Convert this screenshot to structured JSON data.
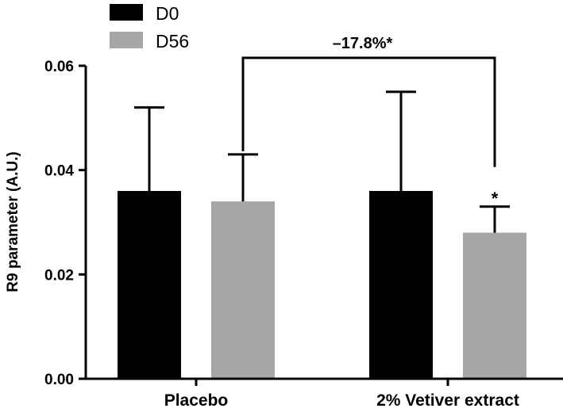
{
  "chart_data": {
    "type": "bar",
    "title": "",
    "xlabel": "",
    "ylabel": "R9 parameter (A.U.)",
    "ylim": [
      0,
      0.06
    ],
    "yticks": [
      0.0,
      0.02,
      0.04,
      0.06
    ],
    "ytick_labels": [
      "0.00",
      "0.02",
      "0.04",
      "0.06"
    ],
    "categories": [
      "Placebo",
      "2% Vetiver extract"
    ],
    "series": [
      {
        "name": "D0",
        "color": "#000000",
        "values": [
          0.036,
          0.036
        ],
        "errors": [
          0.016,
          0.019
        ]
      },
      {
        "name": "D56",
        "color": "#a6a6a6",
        "values": [
          0.034,
          0.028
        ],
        "errors": [
          0.009,
          0.005
        ]
      }
    ],
    "legend": {
      "position": "top-left"
    },
    "annotations": {
      "comparison_label": "–17.8%*",
      "significance_marker": "*"
    },
    "grid": false
  }
}
